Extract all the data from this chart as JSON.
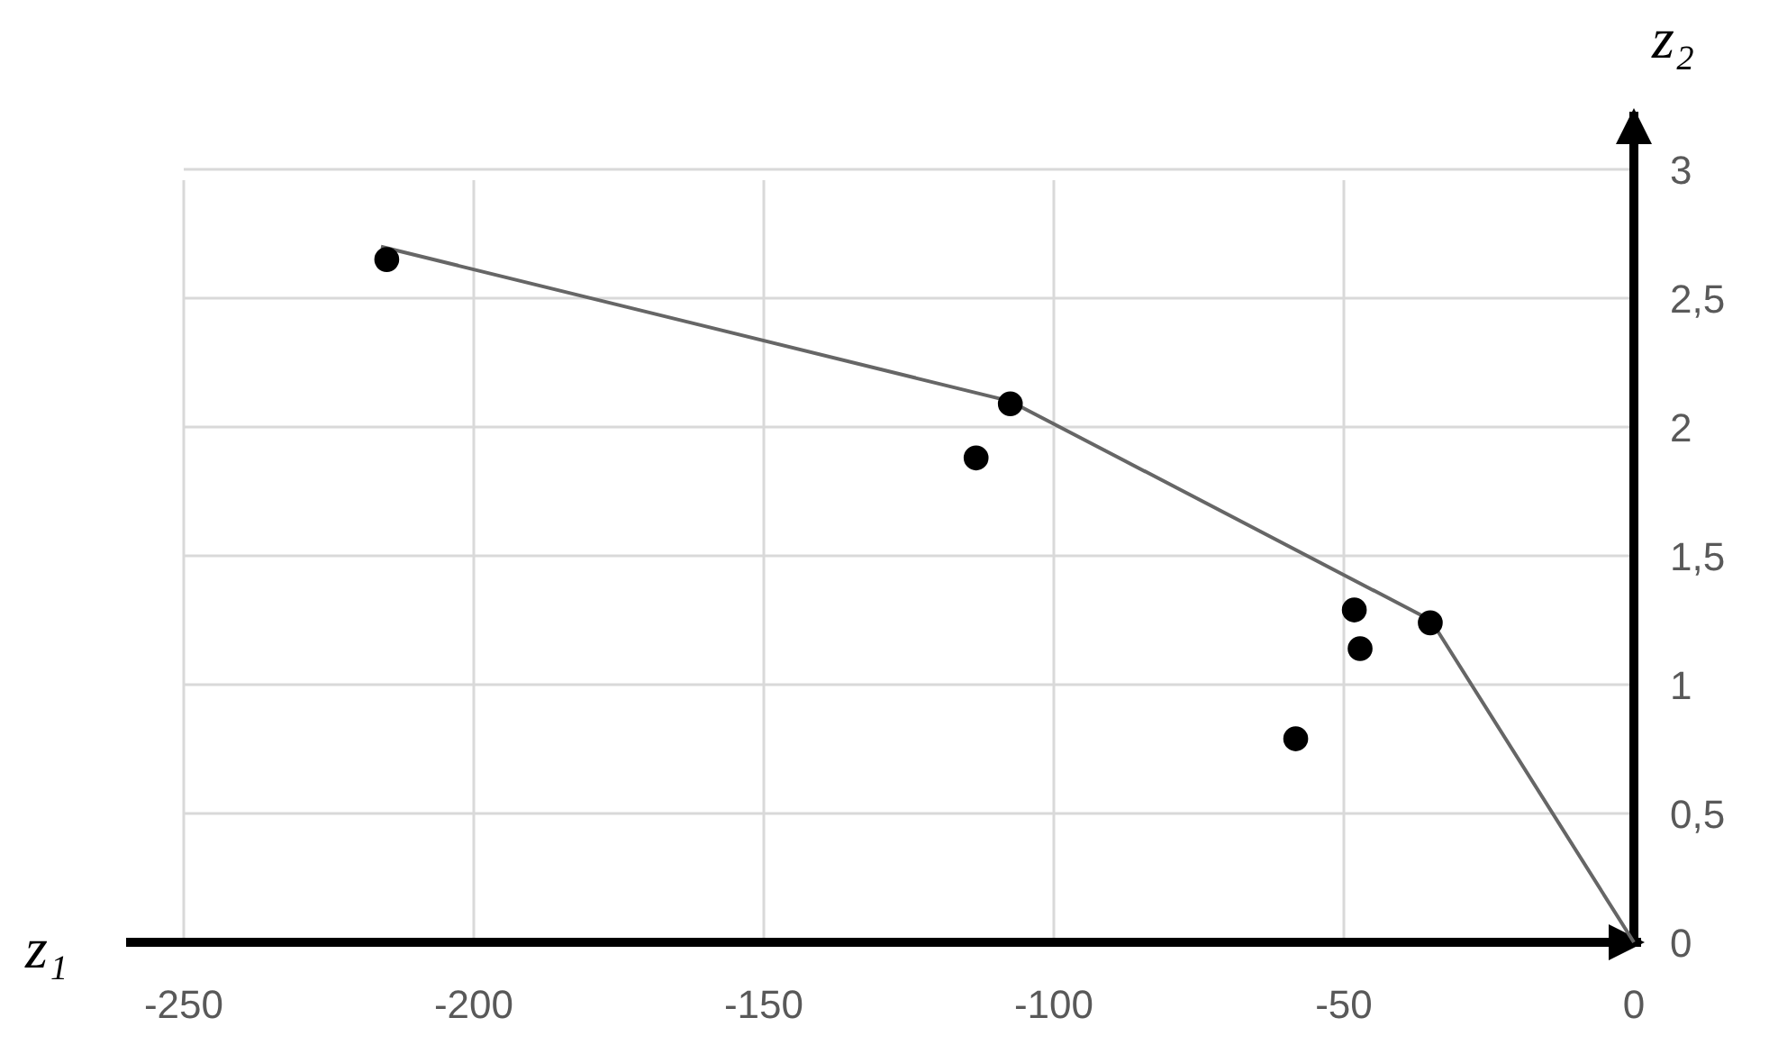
{
  "chart_data": {
    "type": "scatter",
    "xlabel": "z₁",
    "ylabel": "z₂",
    "xlim": [
      -250,
      0
    ],
    "xticks": [
      -250,
      -200,
      -150,
      -100,
      -50,
      0
    ],
    "ylim": [
      0,
      3
    ],
    "yticks": [
      0,
      {
        "value": 0.5,
        "label": "0,5"
      },
      1,
      {
        "value": 1.5,
        "label": "1,5"
      },
      2,
      {
        "value": 2.5,
        "label": "2,5"
      },
      3
    ],
    "grid": true,
    "series": [
      {
        "color": "#000000",
        "marker": "circle",
        "x": [
          -215,
          -107.5,
          -113.4,
          -48.2,
          -47.2,
          -58.3,
          -35.1
        ],
        "values": [
          2.65,
          2.09,
          1.88,
          1.29,
          1.14,
          0.79,
          1.24
        ]
      },
      {
        "type": "line",
        "color": "#666666",
        "marker": "none",
        "x": [
          -216,
          -107.5,
          -35,
          0
        ],
        "values": [
          2.7,
          2.1,
          1.25,
          0
        ]
      }
    ]
  }
}
